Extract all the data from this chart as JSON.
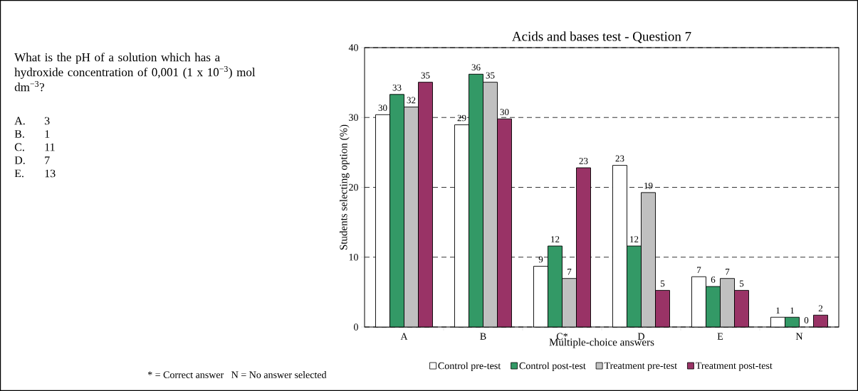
{
  "chart_data": {
    "type": "bar",
    "title": "Acids and bases test - Question 7",
    "xlabel": "Multiple-choice answers",
    "ylabel": "Students selecting option (%)",
    "categories": [
      "A",
      "B",
      "C*",
      "D",
      "E",
      "N"
    ],
    "series": [
      {
        "name": "Control pre-test",
        "color": "#ffffff",
        "values": [
          30.4,
          28.95,
          8.7,
          23.15,
          7.2,
          1.4
        ],
        "value_labels": [
          "30",
          "29",
          "9",
          "23",
          "7",
          "1"
        ]
      },
      {
        "name": "Control post-test",
        "color": "#339966",
        "values": [
          33.3,
          36.2,
          11.6,
          11.6,
          5.8,
          1.4
        ],
        "value_labels": [
          "33",
          "36",
          "12",
          "12",
          "6",
          "1"
        ]
      },
      {
        "name": "Treatment pre-test",
        "color": "#c0c0c0",
        "values": [
          31.5,
          35.05,
          6.95,
          19.25,
          6.95,
          0
        ],
        "value_labels": [
          "32",
          "35",
          "7",
          "19",
          "7",
          "0"
        ]
      },
      {
        "name": "Treatment post-test",
        "color": "#993366",
        "values": [
          35.05,
          29.8,
          22.8,
          5.25,
          5.25,
          1.7
        ],
        "value_labels": [
          "35",
          "30",
          "23",
          "5",
          "5",
          "2"
        ]
      }
    ],
    "ylim": [
      0,
      40
    ],
    "yticks": [
      0,
      10,
      20,
      30,
      40
    ],
    "grid": "y",
    "line_style": "dashed",
    "legend": "bottom",
    "annotations": [
      "What is the pH of a solution which has a hydroxide concentration of 0,001 (1 x 10$^{−3}$) mol dm$^{−3}$?",
      "A.",
      "3",
      "B.",
      "1",
      "C.",
      "11",
      "D.",
      "7",
      "E.",
      "13",
      "* = Correct answer   N = No answer selected"
    ]
  }
}
